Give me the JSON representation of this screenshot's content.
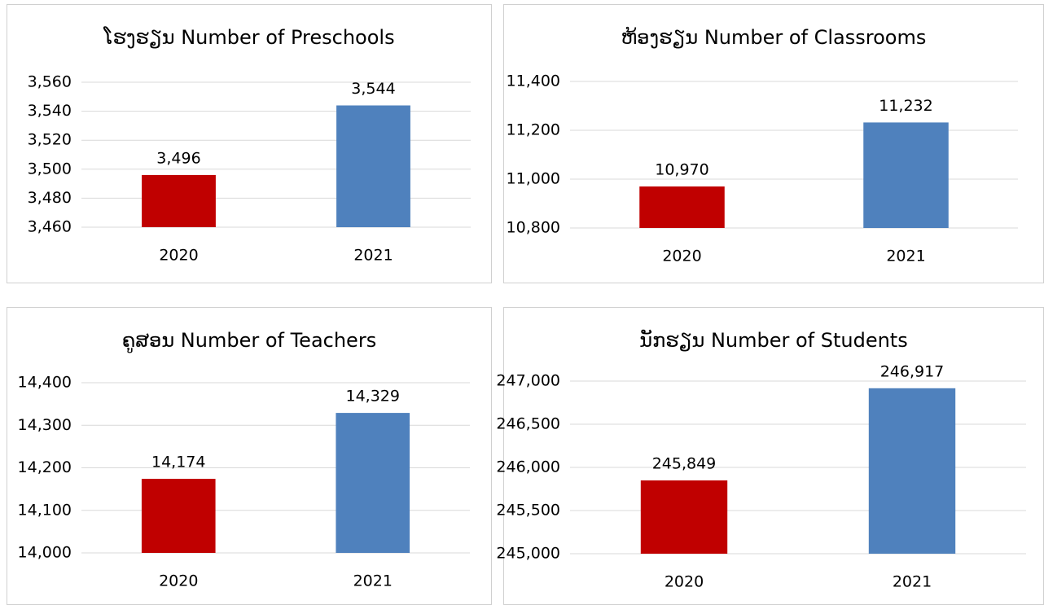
{
  "chart_data": [
    {
      "type": "bar",
      "title": "ໂຮງຮຽນ Number of Preschools",
      "categories": [
        "2020",
        "2021"
      ],
      "values": [
        3496,
        3544
      ],
      "value_labels": [
        "3,496",
        "3,544"
      ],
      "colors": [
        "#c00000",
        "#4f81bd"
      ],
      "ylim": [
        3460,
        3560
      ],
      "yticks": [
        {
          "value": 3460,
          "label": "3,460"
        },
        {
          "value": 3480,
          "label": "3,480"
        },
        {
          "value": 3500,
          "label": "3,500"
        },
        {
          "value": 3520,
          "label": "3,520"
        },
        {
          "value": 3540,
          "label": "3,540"
        },
        {
          "value": 3560,
          "label": "3,560"
        }
      ],
      "grid": true
    },
    {
      "type": "bar",
      "title": "ຫ້ອງຮຽນ Number of Classrooms",
      "categories": [
        "2020",
        "2021"
      ],
      "values": [
        10970,
        11232
      ],
      "value_labels": [
        "10,970",
        "11,232"
      ],
      "colors": [
        "#c00000",
        "#4f81bd"
      ],
      "ylim": [
        10800,
        11400
      ],
      "yticks": [
        {
          "value": 10800,
          "label": "10,800"
        },
        {
          "value": 11000,
          "label": "11,000"
        },
        {
          "value": 11200,
          "label": "11,200"
        },
        {
          "value": 11400,
          "label": "11,400"
        }
      ],
      "grid": true
    },
    {
      "type": "bar",
      "title": "ຄູສອນ Number of Teachers",
      "categories": [
        "2020",
        "2021"
      ],
      "values": [
        14174,
        14329
      ],
      "value_labels": [
        "14,174",
        "14,329"
      ],
      "colors": [
        "#c00000",
        "#4f81bd"
      ],
      "ylim": [
        14000,
        14400
      ],
      "yticks": [
        {
          "value": 14000,
          "label": "14,000"
        },
        {
          "value": 14100,
          "label": "14,100"
        },
        {
          "value": 14200,
          "label": "14,200"
        },
        {
          "value": 14300,
          "label": "14,300"
        },
        {
          "value": 14400,
          "label": "14,400"
        }
      ],
      "grid": true
    },
    {
      "type": "bar",
      "title": "ນັກຮຽນ Number of Students",
      "categories": [
        "2020",
        "2021"
      ],
      "values": [
        245849,
        246917
      ],
      "value_labels": [
        "245,849",
        "246,917"
      ],
      "colors": [
        "#c00000",
        "#4f81bd"
      ],
      "ylim": [
        245000,
        247000
      ],
      "yticks": [
        {
          "value": 245000,
          "label": "245,000"
        },
        {
          "value": 245500,
          "label": "245,500"
        },
        {
          "value": 246000,
          "label": "246,000"
        },
        {
          "value": 246500,
          "label": "246,500"
        },
        {
          "value": 247000,
          "label": "247,000"
        }
      ],
      "grid": true
    }
  ]
}
